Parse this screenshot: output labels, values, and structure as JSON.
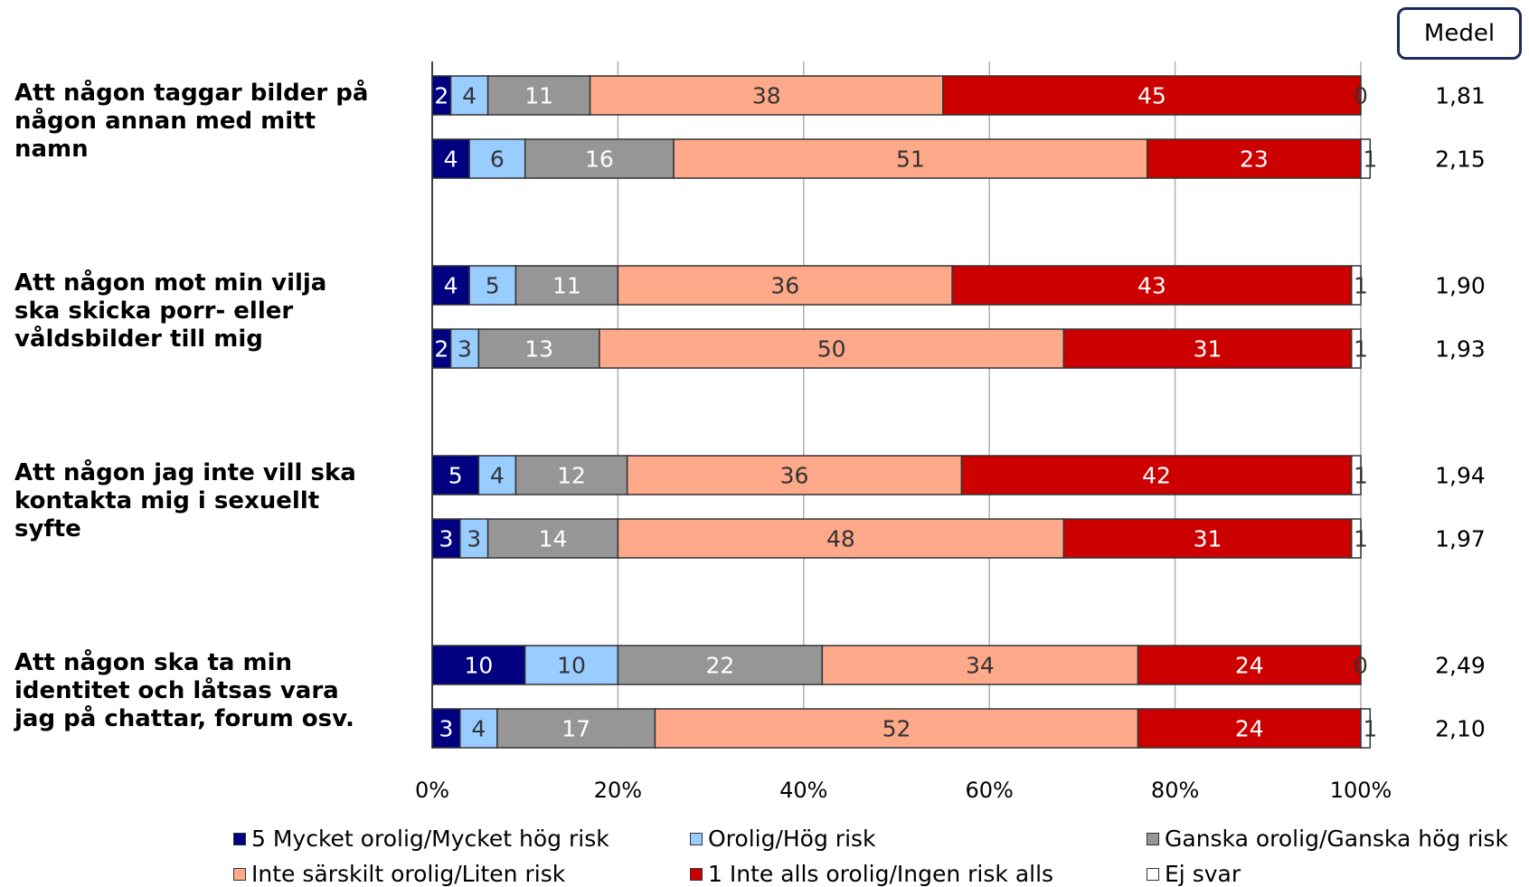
{
  "medel_header": "Medel",
  "legend": [
    {
      "label": "5 Mycket orolig/Mycket hög risk",
      "color": "#000080"
    },
    {
      "label": "Orolig/Hög risk",
      "color": "#99ccff"
    },
    {
      "label": "Ganska orolig/Ganska hög risk",
      "color": "#969696"
    },
    {
      "label": "Inte särskilt orolig/Liten risk",
      "color": "#ffa98b"
    },
    {
      "label": "1 Inte alls orolig/Ingen risk alls",
      "color": "#cc0000"
    },
    {
      "label": "Ej svar",
      "color": "#ffffff"
    }
  ],
  "chart_data": {
    "type": "bar",
    "orientation": "horizontal",
    "stacked": true,
    "xlim": [
      0,
      100
    ],
    "xticks": [
      "0%",
      "20%",
      "40%",
      "60%",
      "80%",
      "100%"
    ],
    "grid": true,
    "legend_position": "bottom",
    "groups": [
      {
        "label": "Att någon taggar bilder på någon annan med mitt namn",
        "bars": [
          {
            "values": [
              2,
              4,
              11,
              38,
              45,
              0
            ],
            "medel": "1,81"
          },
          {
            "values": [
              4,
              6,
              16,
              51,
              23,
              1
            ],
            "medel": "2,15"
          }
        ]
      },
      {
        "label": "Att någon mot min vilja ska skicka porr- eller våldsbilder till mig",
        "bars": [
          {
            "values": [
              4,
              5,
              11,
              36,
              43,
              1
            ],
            "medel": "1,90"
          },
          {
            "values": [
              2,
              3,
              13,
              50,
              31,
              1
            ],
            "medel": "1,93"
          }
        ]
      },
      {
        "label": "Att någon jag inte vill ska kontakta mig i sexuellt syfte",
        "bars": [
          {
            "values": [
              5,
              4,
              12,
              36,
              42,
              1
            ],
            "medel": "1,94"
          },
          {
            "values": [
              3,
              3,
              14,
              48,
              31,
              1
            ],
            "medel": "1,97"
          }
        ]
      },
      {
        "label": "Att någon ska ta min identitet och låtsas vara jag på chattar, forum osv.",
        "bars": [
          {
            "values": [
              10,
              10,
              22,
              34,
              24,
              0
            ],
            "medel": "2,49"
          },
          {
            "values": [
              3,
              4,
              17,
              52,
              24,
              1
            ],
            "medel": "2,10"
          }
        ]
      }
    ]
  }
}
